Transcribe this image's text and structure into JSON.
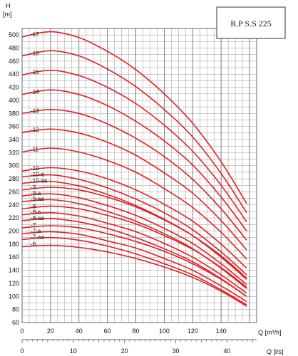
{
  "chart_data": {
    "type": "line",
    "title": "R.P S.S 225",
    "y_axis_title": "H",
    "y_axis_unit": "[m]",
    "x_axis_title": "Q [m³/h]",
    "x2_axis_title": "Q [l/s]",
    "ylim": [
      60,
      510
    ],
    "xlim": [
      0,
      165
    ],
    "x2lim": [
      0,
      45.8
    ],
    "y_ticks": [
      60,
      80,
      100,
      120,
      140,
      160,
      180,
      200,
      220,
      240,
      260,
      280,
      300,
      320,
      340,
      360,
      380,
      400,
      420,
      440,
      460,
      480,
      500
    ],
    "x_ticks": [
      0,
      20,
      40,
      60,
      80,
      100,
      120,
      140
    ],
    "x2_ticks": [
      0,
      10,
      20,
      30,
      40
    ],
    "grid": true,
    "line_color": "#e31e24",
    "series": [
      {
        "name": "-17",
        "shutoff": 497,
        "x": [
          0,
          20,
          40,
          60,
          80,
          100,
          120,
          140,
          158
        ],
        "y": [
          497,
          505,
          496,
          475,
          447,
          410,
          365,
          306,
          242
        ]
      },
      {
        "name": "-16",
        "shutoff": 468,
        "x": [
          0,
          20,
          40,
          60,
          80,
          100,
          120,
          140,
          158
        ],
        "y": [
          468,
          476,
          468,
          448,
          421,
          386,
          344,
          288,
          228
        ]
      },
      {
        "name": "-15",
        "shutoff": 439,
        "x": [
          0,
          20,
          40,
          60,
          80,
          100,
          120,
          140,
          158
        ],
        "y": [
          439,
          446,
          438,
          420,
          395,
          362,
          322,
          270,
          214
        ]
      },
      {
        "name": "-14",
        "shutoff": 409,
        "x": [
          0,
          20,
          40,
          60,
          80,
          100,
          120,
          140,
          158
        ],
        "y": [
          409,
          416,
          409,
          392,
          368,
          338,
          301,
          252,
          200
        ]
      },
      {
        "name": "-13",
        "shutoff": 380,
        "x": [
          0,
          20,
          40,
          60,
          80,
          100,
          120,
          140,
          158
        ],
        "y": [
          380,
          386,
          380,
          364,
          342,
          314,
          279,
          234,
          186
        ]
      },
      {
        "name": "-12",
        "shutoff": 351,
        "x": [
          0,
          20,
          40,
          60,
          80,
          100,
          120,
          140,
          158
        ],
        "y": [
          351,
          356,
          350,
          336,
          316,
          289,
          258,
          216,
          171
        ]
      },
      {
        "name": "-11",
        "shutoff": 321,
        "x": [
          0,
          20,
          40,
          60,
          80,
          100,
          120,
          140,
          158
        ],
        "y": [
          321,
          327,
          321,
          308,
          290,
          265,
          236,
          198,
          157
        ]
      },
      {
        "name": "-10",
        "shutoff": 292,
        "x": [
          0,
          20,
          40,
          60,
          80,
          100,
          120,
          140,
          158
        ],
        "y": [
          292,
          297,
          292,
          280,
          263,
          241,
          215,
          180,
          143
        ]
      },
      {
        "name": "-10-a",
        "shutoff": 283,
        "x": [
          0,
          20,
          40,
          60,
          80,
          100,
          120,
          140,
          158
        ],
        "y": [
          283,
          286,
          279,
          266,
          249,
          228,
          202,
          168,
          133
        ]
      },
      {
        "name": "-10-aa",
        "shutoff": 273,
        "x": [
          0,
          20,
          40,
          60,
          80,
          100,
          120,
          140,
          158
        ],
        "y": [
          273,
          276,
          269,
          256,
          239,
          218,
          193,
          160,
          126
        ]
      },
      {
        "name": "-9",
        "shutoff": 263,
        "x": [
          0,
          20,
          40,
          60,
          80,
          100,
          120,
          140,
          158
        ],
        "y": [
          263,
          267,
          263,
          252,
          237,
          217,
          193,
          162,
          128
        ]
      },
      {
        "name": "-9-a",
        "shutoff": 254,
        "x": [
          0,
          20,
          40,
          60,
          80,
          100,
          120,
          140,
          158
        ],
        "y": [
          254,
          257,
          251,
          239,
          224,
          204,
          181,
          150,
          118
        ]
      },
      {
        "name": "-9-aa",
        "shutoff": 245,
        "x": [
          0,
          20,
          40,
          60,
          80,
          100,
          120,
          140,
          158
        ],
        "y": [
          245,
          248,
          242,
          230,
          215,
          196,
          173,
          143,
          112
        ]
      },
      {
        "name": "-8",
        "shutoff": 234,
        "x": [
          0,
          20,
          40,
          60,
          80,
          100,
          120,
          140,
          158
        ],
        "y": [
          234,
          238,
          234,
          224,
          211,
          193,
          172,
          144,
          114
        ]
      },
      {
        "name": "-8-a",
        "shutoff": 225,
        "x": [
          0,
          20,
          40,
          60,
          80,
          100,
          120,
          140,
          158
        ],
        "y": [
          225,
          228,
          223,
          212,
          199,
          181,
          160,
          133,
          105
        ]
      },
      {
        "name": "-8-aa",
        "shutoff": 216,
        "x": [
          0,
          20,
          40,
          60,
          80,
          100,
          120,
          140,
          158
        ],
        "y": [
          216,
          219,
          214,
          204,
          190,
          173,
          153,
          127,
          100
        ]
      },
      {
        "name": "-7",
        "shutoff": 205,
        "x": [
          0,
          20,
          40,
          60,
          80,
          100,
          120,
          140,
          158
        ],
        "y": [
          205,
          208,
          205,
          196,
          184,
          169,
          150,
          126,
          100
        ]
      },
      {
        "name": "-7-a",
        "shutoff": 196,
        "x": [
          0,
          20,
          40,
          60,
          80,
          100,
          120,
          140,
          158
        ],
        "y": [
          196,
          199,
          195,
          185,
          174,
          158,
          140,
          116,
          92
        ]
      },
      {
        "name": "-7-aa",
        "shutoff": 187,
        "x": [
          0,
          20,
          40,
          60,
          80,
          100,
          120,
          140,
          158
        ],
        "y": [
          187,
          190,
          186,
          177,
          165,
          150,
          133,
          110,
          87
        ]
      },
      {
        "name": "-6",
        "shutoff": 176,
        "x": [
          0,
          20,
          40,
          60,
          80,
          100,
          120,
          140,
          158
        ],
        "y": [
          176,
          178,
          175,
          168,
          158,
          145,
          129,
          108,
          85
        ]
      }
    ]
  }
}
